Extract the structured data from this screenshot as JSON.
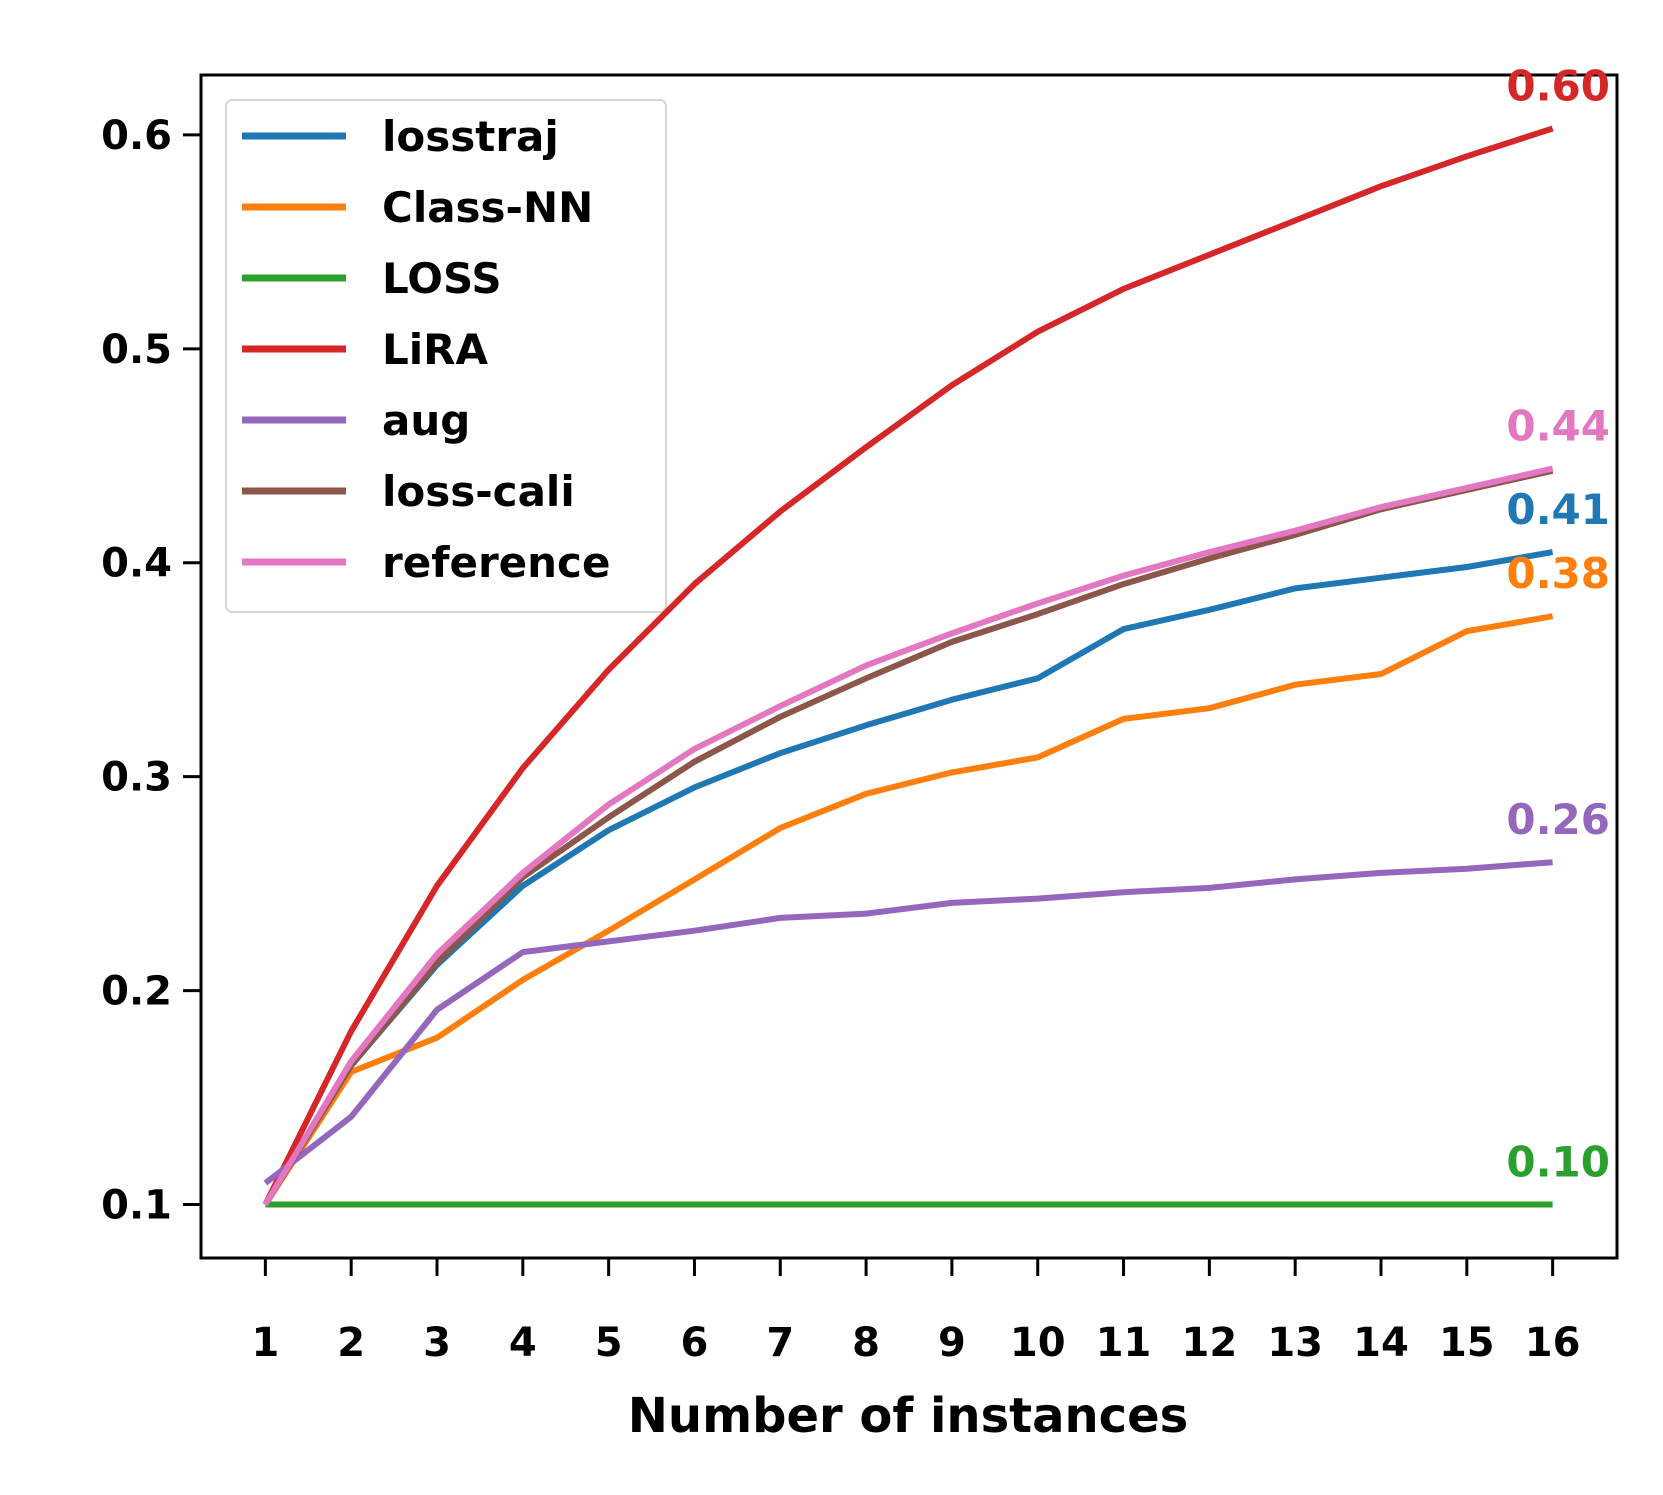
{
  "chart_data": {
    "type": "line",
    "title": "",
    "xlabel": "Number of instances",
    "ylabel": "",
    "x": [
      1,
      2,
      3,
      4,
      5,
      6,
      7,
      8,
      9,
      10,
      11,
      12,
      13,
      14,
      15,
      16
    ],
    "x_tick_labels": [
      "1",
      "2",
      "3",
      "4",
      "5",
      "6",
      "7",
      "8",
      "9",
      "10",
      "11",
      "12",
      "13",
      "14",
      "15",
      "16"
    ],
    "xlim": [
      0.25,
      16.75
    ],
    "ylim": [
      0.075,
      0.628
    ],
    "y_ticks": [
      0.1,
      0.2,
      0.3,
      0.4,
      0.5,
      0.6
    ],
    "y_tick_labels": [
      "0.1",
      "0.2",
      "0.3",
      "0.4",
      "0.5",
      "0.6"
    ],
    "grid": false,
    "legend_position": "top-left",
    "series": [
      {
        "name": "losstraj",
        "color": "#1f77b4",
        "end_label": "0.41",
        "values": [
          0.1,
          0.165,
          0.212,
          0.249,
          0.275,
          0.295,
          0.311,
          0.324,
          0.336,
          0.346,
          0.369,
          0.378,
          0.388,
          0.393,
          0.398,
          0.405
        ]
      },
      {
        "name": "Class-NN",
        "color": "#ff7f0e",
        "end_label": "0.38",
        "values": [
          0.1,
          0.162,
          0.178,
          0.205,
          0.228,
          0.252,
          0.276,
          0.292,
          0.302,
          0.309,
          0.327,
          0.332,
          0.343,
          0.348,
          0.368,
          0.375
        ]
      },
      {
        "name": "LOSS",
        "color": "#2ca02c",
        "end_label": "0.10",
        "values": [
          0.1,
          0.1,
          0.1,
          0.1,
          0.1,
          0.1,
          0.1,
          0.1,
          0.1,
          0.1,
          0.1,
          0.1,
          0.1,
          0.1,
          0.1,
          0.1
        ]
      },
      {
        "name": "LiRA",
        "color": "#d62728",
        "end_label": "0.60",
        "values": [
          0.1,
          0.181,
          0.249,
          0.304,
          0.35,
          0.39,
          0.424,
          0.454,
          0.483,
          0.508,
          0.528,
          0.544,
          0.56,
          0.576,
          0.59,
          0.603
        ]
      },
      {
        "name": "aug",
        "color": "#9467bd",
        "end_label": "0.26",
        "values": [
          0.11,
          0.141,
          0.191,
          0.218,
          0.223,
          0.228,
          0.234,
          0.236,
          0.241,
          0.243,
          0.246,
          0.248,
          0.252,
          0.255,
          0.257,
          0.26
        ]
      },
      {
        "name": "loss-cali",
        "color": "#8c564b",
        "end_label": "",
        "values": [
          0.1,
          0.165,
          0.213,
          0.253,
          0.281,
          0.307,
          0.328,
          0.346,
          0.363,
          0.376,
          0.39,
          0.402,
          0.413,
          0.425,
          0.434,
          0.443
        ]
      },
      {
        "name": "reference",
        "color": "#e377c2",
        "end_label": "0.44",
        "values": [
          0.1,
          0.167,
          0.217,
          0.255,
          0.287,
          0.313,
          0.333,
          0.352,
          0.367,
          0.381,
          0.394,
          0.405,
          0.415,
          0.426,
          0.435,
          0.444
        ]
      }
    ]
  }
}
